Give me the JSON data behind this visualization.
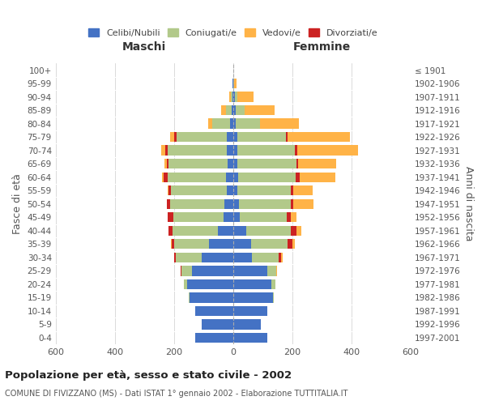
{
  "age_groups": [
    "0-4",
    "5-9",
    "10-14",
    "15-19",
    "20-24",
    "25-29",
    "30-34",
    "35-39",
    "40-44",
    "45-49",
    "50-54",
    "55-59",
    "60-64",
    "65-69",
    "70-74",
    "75-79",
    "80-84",
    "85-89",
    "90-94",
    "95-99",
    "100+"
  ],
  "birth_years": [
    "1997-2001",
    "1992-1996",
    "1987-1991",
    "1982-1986",
    "1977-1981",
    "1972-1976",
    "1967-1971",
    "1962-1966",
    "1957-1961",
    "1952-1956",
    "1947-1951",
    "1942-1946",
    "1937-1941",
    "1932-1936",
    "1927-1931",
    "1922-1926",
    "1917-1921",
    "1912-1916",
    "1907-1911",
    "1902-1906",
    "≤ 1901"
  ],
  "males": {
    "celibe": [
      128,
      105,
      128,
      148,
      155,
      140,
      105,
      80,
      50,
      32,
      28,
      20,
      25,
      18,
      20,
      20,
      10,
      5,
      3,
      2,
      0
    ],
    "coniugato": [
      0,
      0,
      1,
      2,
      10,
      35,
      90,
      120,
      155,
      170,
      185,
      190,
      195,
      200,
      200,
      170,
      60,
      20,
      5,
      1,
      0
    ],
    "vedovo": [
      0,
      0,
      0,
      0,
      0,
      0,
      0,
      1,
      1,
      2,
      2,
      2,
      5,
      10,
      15,
      15,
      15,
      15,
      5,
      0,
      0
    ],
    "divorziato": [
      0,
      0,
      0,
      0,
      0,
      2,
      5,
      8,
      12,
      18,
      10,
      8,
      15,
      5,
      8,
      8,
      0,
      0,
      0,
      0,
      0
    ]
  },
  "females": {
    "nubile": [
      115,
      95,
      115,
      135,
      130,
      115,
      65,
      60,
      45,
      22,
      20,
      15,
      18,
      15,
      15,
      15,
      10,
      8,
      5,
      2,
      0
    ],
    "coniugata": [
      0,
      0,
      1,
      2,
      12,
      30,
      90,
      125,
      150,
      160,
      175,
      180,
      195,
      200,
      195,
      165,
      80,
      30,
      10,
      2,
      0
    ],
    "vedova": [
      0,
      0,
      0,
      0,
      0,
      2,
      5,
      10,
      15,
      20,
      70,
      65,
      120,
      130,
      205,
      210,
      130,
      100,
      55,
      8,
      2
    ],
    "divorziata": [
      0,
      0,
      0,
      0,
      0,
      2,
      8,
      15,
      20,
      12,
      8,
      8,
      12,
      5,
      8,
      5,
      2,
      2,
      0,
      0,
      0
    ]
  },
  "colors": {
    "celibe": "#4472C4",
    "coniugato": "#b2c98a",
    "vedovo": "#FFB347",
    "divorziato": "#CC2222"
  },
  "title": "Popolazione per età, sesso e stato civile - 2002",
  "subtitle": "COMUNE DI FIVIZZANO (MS) - Dati ISTAT 1° gennaio 2002 - Elaborazione TUTTITALIA.IT",
  "xlabel_left": "Maschi",
  "xlabel_right": "Femmine",
  "ylabel_left": "Fasce di età",
  "ylabel_right": "Anni di nascita",
  "xlim": 600,
  "legend_labels": [
    "Celibi/Nubili",
    "Coniugati/e",
    "Vedovi/e",
    "Divorziati/e"
  ],
  "bg_color": "#ffffff",
  "grid_color": "#cccccc"
}
